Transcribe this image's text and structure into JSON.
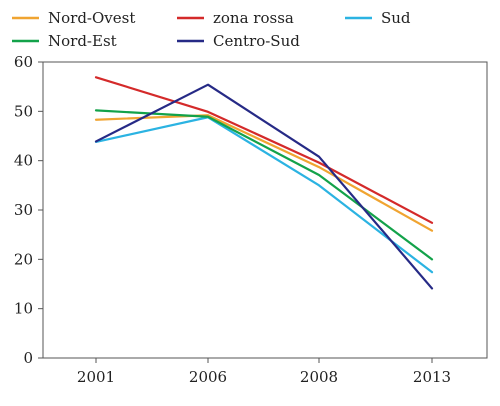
{
  "chart_data": {
    "type": "line",
    "categories": [
      "2001",
      "2006",
      "2008",
      "2013"
    ],
    "ylim": [
      0,
      60
    ],
    "yticks": [
      0,
      10,
      20,
      30,
      40,
      50,
      60
    ],
    "grid": false,
    "legend_position": "top",
    "series": [
      {
        "name": "Nord-Ovest",
        "color": "#f0a431",
        "values": [
          48.3,
          49.2,
          38.7,
          25.8
        ]
      },
      {
        "name": "zona rossa",
        "color": "#d42a2a",
        "values": [
          56.9,
          49.9,
          39.6,
          27.4
        ]
      },
      {
        "name": "Sud",
        "color": "#2bb3e2",
        "values": [
          43.8,
          48.8,
          35.0,
          17.4
        ]
      },
      {
        "name": "Nord-Est",
        "color": "#13a24a",
        "values": [
          50.2,
          48.9,
          37.1,
          20.0
        ]
      },
      {
        "name": "Centro-Sud",
        "color": "#262a86",
        "values": [
          43.9,
          55.4,
          40.8,
          14.1
        ]
      }
    ]
  }
}
